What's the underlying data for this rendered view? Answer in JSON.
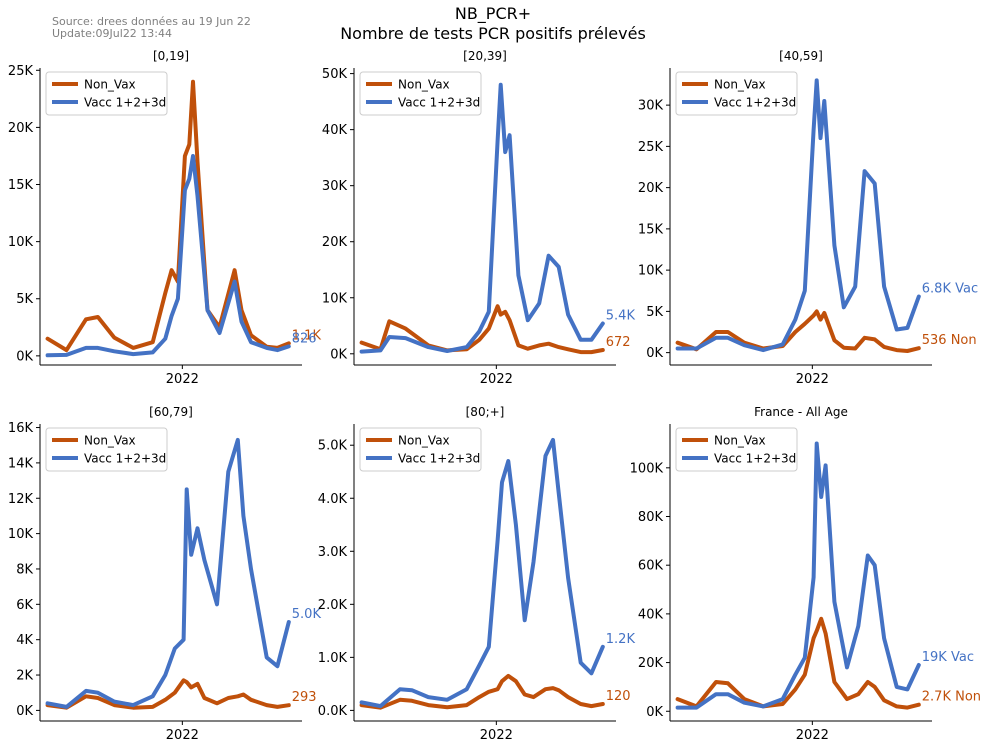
{
  "header": {
    "source_line": "Source: drees données au 19 Jun 22",
    "update_line": "Update:09Jul22 13:44",
    "title_line1": "NB_PCR+",
    "title_line2": "Nombre de tests PCR positifs prélevés"
  },
  "colors": {
    "non_vax": "#C0500A",
    "vax": "#4472C4"
  },
  "chart_data": [
    {
      "type": "line",
      "title": "[0,19]",
      "x_tick_label": "2022",
      "ylim": [
        -800,
        25200
      ],
      "yticks": [
        0,
        5000,
        10000,
        15000,
        20000,
        25000
      ],
      "ytick_labels": [
        "0K",
        "5K",
        "10K",
        "15K",
        "20K",
        "25K"
      ],
      "legend": "top-left",
      "x": [
        "2021-06-01",
        "2021-07-01",
        "2021-08-01",
        "2021-08-20",
        "2021-09-15",
        "2021-10-15",
        "2021-11-15",
        "2021-12-05",
        "2021-12-15",
        "2021-12-25",
        "2022-01-05",
        "2022-01-12",
        "2022-01-18",
        "2022-01-25",
        "2022-02-10",
        "2022-03-01",
        "2022-03-25",
        "2022-04-05",
        "2022-04-20",
        "2022-05-15",
        "2022-06-01",
        "2022-06-19"
      ],
      "series": [
        {
          "name": "Non_Vax",
          "end_label": "1.1K",
          "values": [
            1500,
            500,
            3200,
            3400,
            1600,
            700,
            1200,
            5500,
            7500,
            6500,
            17500,
            18500,
            24000,
            17000,
            4000,
            2500,
            7500,
            4000,
            1800,
            800,
            700,
            1100
          ]
        },
        {
          "name": "Vacc 1+2+3d",
          "end_label": "826",
          "values": [
            50,
            80,
            700,
            700,
            400,
            150,
            300,
            1500,
            3500,
            5000,
            14500,
            15500,
            17500,
            14000,
            4000,
            2000,
            6500,
            3000,
            1200,
            700,
            500,
            826
          ]
        }
      ]
    },
    {
      "type": "line",
      "title": "[20,39]",
      "x_tick_label": "2022",
      "ylim": [
        -2000,
        51000
      ],
      "yticks": [
        0,
        10000,
        20000,
        30000,
        40000,
        50000
      ],
      "ytick_labels": [
        "0K",
        "10K",
        "20K",
        "30K",
        "40K",
        "50K"
      ],
      "legend": "top-left",
      "x": [
        "2021-06-01",
        "2021-07-01",
        "2021-07-15",
        "2021-08-10",
        "2021-09-15",
        "2021-10-15",
        "2021-11-15",
        "2021-12-05",
        "2021-12-20",
        "2022-01-03",
        "2022-01-08",
        "2022-01-15",
        "2022-01-22",
        "2022-02-05",
        "2022-02-20",
        "2022-03-10",
        "2022-03-25",
        "2022-04-10",
        "2022-04-25",
        "2022-05-15",
        "2022-06-01",
        "2022-06-19"
      ],
      "series": [
        {
          "name": "Non_Vax",
          "end_label": "672",
          "values": [
            2000,
            800,
            5800,
            4500,
            1500,
            600,
            800,
            2500,
            4500,
            8500,
            7000,
            7500,
            6000,
            1500,
            900,
            1500,
            1800,
            1200,
            800,
            300,
            300,
            672
          ]
        },
        {
          "name": "Vacc 1+2+3d",
          "end_label": "5.4K",
          "values": [
            400,
            600,
            3000,
            2800,
            1200,
            500,
            1200,
            4000,
            7500,
            38000,
            48000,
            36000,
            39000,
            14000,
            6000,
            9000,
            17500,
            15500,
            7000,
            2500,
            2500,
            5400
          ]
        }
      ]
    },
    {
      "type": "line",
      "title": "[40,59]",
      "x_tick_label": "2022",
      "ylim": [
        -1500,
        34500
      ],
      "yticks": [
        0,
        5000,
        10000,
        15000,
        20000,
        25000,
        30000
      ],
      "ytick_labels": [
        "0K",
        "5K",
        "10K",
        "15K",
        "20K",
        "25K",
        "30K"
      ],
      "legend": "top-left",
      "x": [
        "2021-06-01",
        "2021-07-01",
        "2021-08-01",
        "2021-08-20",
        "2021-09-15",
        "2021-10-15",
        "2021-11-15",
        "2021-12-05",
        "2021-12-20",
        "2022-01-03",
        "2022-01-08",
        "2022-01-14",
        "2022-01-20",
        "2022-02-05",
        "2022-02-20",
        "2022-03-10",
        "2022-03-25",
        "2022-04-10",
        "2022-04-25",
        "2022-05-15",
        "2022-06-01",
        "2022-06-19"
      ],
      "series": [
        {
          "name": "Non_Vax",
          "end_label": "536 Non",
          "values": [
            1200,
            400,
            2500,
            2500,
            1200,
            500,
            800,
            2500,
            3500,
            4500,
            5000,
            4000,
            4800,
            1500,
            600,
            500,
            1800,
            1600,
            700,
            300,
            200,
            536
          ]
        },
        {
          "name": "Vacc 1+2+3d",
          "end_label": "6.8K Vac",
          "values": [
            500,
            500,
            1800,
            1800,
            900,
            300,
            1000,
            4000,
            7500,
            27000,
            33000,
            26000,
            30500,
            13000,
            5500,
            8000,
            22000,
            20500,
            8000,
            2800,
            3000,
            6800
          ]
        }
      ]
    },
    {
      "type": "line",
      "title": "[60,79]",
      "x_tick_label": "2022",
      "ylim": [
        -600,
        16200
      ],
      "yticks": [
        0,
        2000,
        4000,
        6000,
        8000,
        10000,
        12000,
        14000,
        16000
      ],
      "ytick_labels": [
        "0K",
        "2K",
        "4K",
        "6K",
        "8K",
        "10K",
        "12K",
        "14K",
        "16K"
      ],
      "legend": "top-left",
      "x": [
        "2021-06-01",
        "2021-07-01",
        "2021-08-01",
        "2021-08-20",
        "2021-09-15",
        "2021-10-15",
        "2021-11-15",
        "2021-12-05",
        "2021-12-20",
        "2022-01-03",
        "2022-01-08",
        "2022-01-15",
        "2022-01-25",
        "2022-02-05",
        "2022-02-25",
        "2022-03-15",
        "2022-03-30",
        "2022-04-08",
        "2022-04-20",
        "2022-05-15",
        "2022-06-01",
        "2022-06-19"
      ],
      "series": [
        {
          "name": "Non_Vax",
          "end_label": "293",
          "values": [
            300,
            150,
            800,
            700,
            300,
            150,
            200,
            600,
            1000,
            1700,
            1600,
            1300,
            1500,
            700,
            400,
            700,
            800,
            900,
            600,
            300,
            200,
            293
          ]
        },
        {
          "name": "Vacc 1+2+3d",
          "end_label": "5.0K",
          "values": [
            400,
            200,
            1100,
            1000,
            500,
            300,
            800,
            2000,
            3500,
            4000,
            12500,
            8800,
            10300,
            8500,
            6000,
            13500,
            15300,
            11000,
            8000,
            3000,
            2500,
            5000
          ]
        }
      ]
    },
    {
      "type": "line",
      "title": "[80;+]",
      "x_tick_label": "2022",
      "ylim": [
        -200,
        5400
      ],
      "yticks": [
        0,
        1000,
        2000,
        3000,
        4000,
        5000
      ],
      "ytick_labels": [
        "0.0K",
        "1.0K",
        "2.0K",
        "3.0K",
        "4.0K",
        "5.0K"
      ],
      "legend": "top-left",
      "x": [
        "2021-06-01",
        "2021-07-01",
        "2021-08-01",
        "2021-08-20",
        "2021-09-15",
        "2021-10-15",
        "2021-11-15",
        "2021-12-05",
        "2021-12-20",
        "2022-01-03",
        "2022-01-10",
        "2022-01-20",
        "2022-02-01",
        "2022-02-15",
        "2022-03-01",
        "2022-03-20",
        "2022-04-01",
        "2022-04-10",
        "2022-04-25",
        "2022-05-15",
        "2022-06-01",
        "2022-06-19"
      ],
      "series": [
        {
          "name": "Non_Vax",
          "end_label": "120",
          "values": [
            100,
            50,
            200,
            180,
            100,
            60,
            100,
            250,
            350,
            400,
            550,
            650,
            550,
            300,
            250,
            400,
            420,
            380,
            250,
            120,
            80,
            120
          ]
        },
        {
          "name": "Vacc 1+2+3d",
          "end_label": "1.2K",
          "values": [
            150,
            80,
            400,
            380,
            250,
            200,
            400,
            850,
            1200,
            3200,
            4300,
            4700,
            3500,
            1700,
            2800,
            4800,
            5100,
            4100,
            2500,
            900,
            700,
            1200
          ]
        }
      ]
    },
    {
      "type": "line",
      "title": "France - All Age",
      "x_tick_label": "2022",
      "ylim": [
        -4000,
        118000
      ],
      "yticks": [
        0,
        20000,
        40000,
        60000,
        80000,
        100000
      ],
      "ytick_labels": [
        "0K",
        "20K",
        "40K",
        "60K",
        "80K",
        "100K"
      ],
      "legend": "top-left",
      "x": [
        "2021-06-01",
        "2021-07-01",
        "2021-08-01",
        "2021-08-20",
        "2021-09-15",
        "2021-10-15",
        "2021-11-15",
        "2021-12-05",
        "2021-12-20",
        "2022-01-03",
        "2022-01-08",
        "2022-01-15",
        "2022-01-22",
        "2022-02-05",
        "2022-02-25",
        "2022-03-15",
        "2022-03-30",
        "2022-04-10",
        "2022-04-25",
        "2022-05-15",
        "2022-06-01",
        "2022-06-19"
      ],
      "series": [
        {
          "name": "Non_Vax",
          "end_label": "2.7K Non",
          "values": [
            5000,
            2000,
            12000,
            11500,
            5000,
            2000,
            3000,
            9000,
            15000,
            30000,
            33000,
            38000,
            32000,
            12000,
            5000,
            7000,
            12000,
            10000,
            4500,
            2000,
            1500,
            2700
          ]
        },
        {
          "name": "Vacc 1+2+3d",
          "end_label": "19K Vac",
          "values": [
            1500,
            1500,
            7000,
            7000,
            3500,
            2000,
            5000,
            15000,
            22000,
            55000,
            110000,
            88000,
            101000,
            45000,
            18000,
            35000,
            64000,
            60000,
            30000,
            10000,
            9000,
            19000
          ]
        }
      ]
    }
  ]
}
